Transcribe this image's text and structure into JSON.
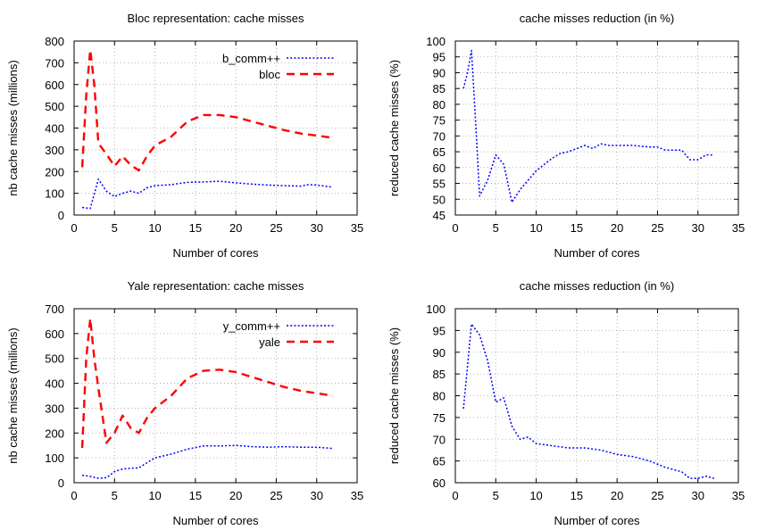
{
  "chart_data": [
    {
      "type": "line",
      "title": "Bloc representation: cache misses",
      "xlabel": "Number of cores",
      "ylabel": "nb cache misses (millions)",
      "xlim": [
        0,
        35
      ],
      "ylim": [
        0,
        800
      ],
      "xticks": [
        0,
        5,
        10,
        15,
        20,
        25,
        30,
        35
      ],
      "yticks": [
        0,
        100,
        200,
        300,
        400,
        500,
        600,
        700,
        800
      ],
      "grid": true,
      "legend": "top-right",
      "series": [
        {
          "name": "b_comm++",
          "color": "#0000ff",
          "style": "dotted",
          "x": [
            1,
            2,
            3,
            4,
            5,
            6,
            7,
            8,
            9,
            10,
            12,
            14,
            16,
            18,
            20,
            22,
            24,
            26,
            28,
            29,
            30,
            32
          ],
          "y": [
            35,
            30,
            165,
            110,
            85,
            100,
            110,
            100,
            125,
            135,
            140,
            150,
            152,
            155,
            148,
            142,
            138,
            135,
            133,
            140,
            138,
            128
          ]
        },
        {
          "name": "bloc",
          "color": "#ff0000",
          "style": "dashed",
          "x": [
            1,
            1.5,
            2,
            2.5,
            3,
            4,
            5,
            6,
            7,
            8,
            9,
            10,
            12,
            14,
            16,
            18,
            20,
            22,
            24,
            26,
            28,
            30,
            32
          ],
          "y": [
            220,
            550,
            760,
            600,
            330,
            280,
            225,
            270,
            230,
            205,
            270,
            320,
            360,
            430,
            460,
            460,
            450,
            430,
            410,
            390,
            375,
            365,
            355
          ]
        }
      ]
    },
    {
      "type": "line",
      "title": "cache misses reduction (in %)",
      "xlabel": "Number of cores",
      "ylabel": "reduced cache misses (%)",
      "xlim": [
        0,
        35
      ],
      "ylim": [
        45,
        100
      ],
      "xticks": [
        0,
        5,
        10,
        15,
        20,
        25,
        30,
        35
      ],
      "yticks": [
        45,
        50,
        55,
        60,
        65,
        70,
        75,
        80,
        85,
        90,
        95,
        100
      ],
      "grid": true,
      "series": [
        {
          "name": "",
          "color": "#0000ff",
          "style": "dotted",
          "x": [
            1,
            1.5,
            2,
            2.5,
            3,
            4,
            5,
            6,
            7,
            8,
            9,
            10,
            11,
            12,
            13,
            14,
            15,
            16,
            17,
            18,
            19,
            20,
            22,
            24,
            25,
            26,
            28,
            29,
            30,
            31,
            32
          ],
          "y": [
            85,
            90,
            97,
            75,
            51,
            56,
            64,
            61,
            49,
            53,
            56,
            59,
            61,
            63,
            64.5,
            65,
            66,
            67,
            66,
            67.5,
            67,
            67,
            67,
            66.5,
            66.5,
            65.5,
            65.5,
            62.5,
            62.5,
            64,
            64
          ]
        }
      ]
    },
    {
      "type": "line",
      "title": "Yale representation: cache misses",
      "xlabel": "Number of cores",
      "ylabel": "nb cache misses (millions)",
      "xlim": [
        0,
        35
      ],
      "ylim": [
        0,
        700
      ],
      "xticks": [
        0,
        5,
        10,
        15,
        20,
        25,
        30,
        35
      ],
      "yticks": [
        0,
        100,
        200,
        300,
        400,
        500,
        600,
        700
      ],
      "grid": true,
      "legend": "top-right",
      "series": [
        {
          "name": "y_comm++",
          "color": "#0000ff",
          "style": "dotted",
          "x": [
            1,
            2,
            3,
            4,
            5,
            6,
            7,
            8,
            9,
            10,
            12,
            14,
            16,
            18,
            20,
            22,
            24,
            26,
            28,
            30,
            32
          ],
          "y": [
            30,
            25,
            18,
            20,
            45,
            55,
            58,
            60,
            80,
            100,
            115,
            135,
            148,
            148,
            150,
            145,
            143,
            145,
            143,
            143,
            138
          ]
        },
        {
          "name": "yale",
          "color": "#ff0000",
          "style": "dashed",
          "x": [
            1,
            1.5,
            2,
            2.5,
            3,
            4,
            5,
            6,
            7,
            8,
            9,
            10,
            12,
            14,
            16,
            18,
            20,
            22,
            24,
            26,
            28,
            30,
            32
          ],
          "y": [
            140,
            500,
            660,
            500,
            380,
            160,
            200,
            270,
            220,
            200,
            260,
            300,
            350,
            420,
            450,
            455,
            445,
            425,
            405,
            385,
            370,
            360,
            350
          ]
        }
      ]
    },
    {
      "type": "line",
      "title": "cache misses reduction (in %)",
      "xlabel": "Number of cores",
      "ylabel": "reduced cache misses (%)",
      "xlim": [
        0,
        35
      ],
      "ylim": [
        60,
        100
      ],
      "xticks": [
        0,
        5,
        10,
        15,
        20,
        25,
        30,
        35
      ],
      "yticks": [
        60,
        65,
        70,
        75,
        80,
        85,
        90,
        95,
        100
      ],
      "grid": true,
      "series": [
        {
          "name": "",
          "color": "#0000ff",
          "style": "dotted",
          "x": [
            1,
            2,
            3,
            4,
            5,
            6,
            7,
            8,
            9,
            10,
            12,
            14,
            16,
            18,
            20,
            22,
            24,
            26,
            28,
            29,
            30,
            31,
            32
          ],
          "y": [
            77,
            96.5,
            94,
            88,
            78.5,
            79.5,
            73,
            70,
            70.5,
            69,
            68.5,
            68,
            68,
            67.5,
            66.5,
            66,
            65,
            63.5,
            62.5,
            61,
            61,
            61.5,
            61
          ]
        }
      ]
    }
  ]
}
